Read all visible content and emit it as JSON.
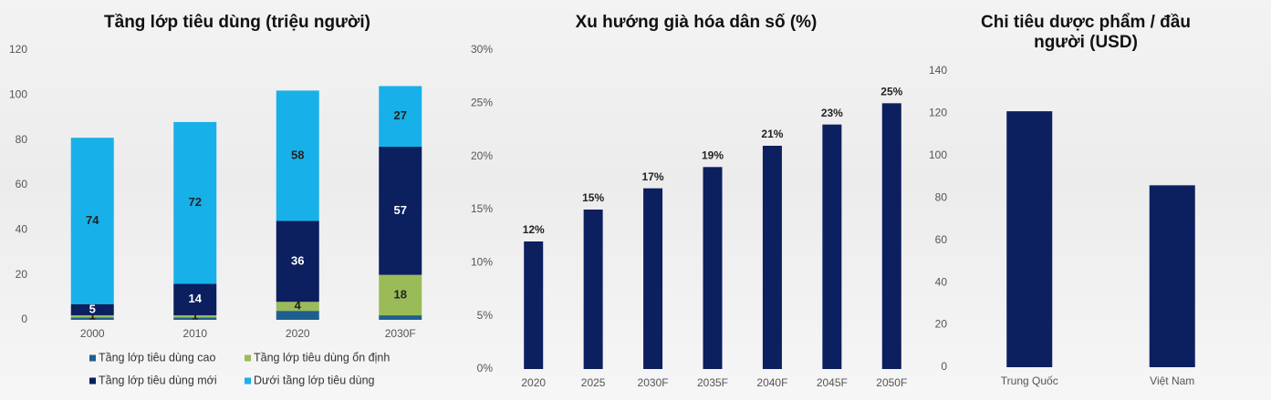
{
  "chart_data": [
    {
      "type": "stacked_bar",
      "title": "Tầng lớp tiêu dùng (triệu người)",
      "categories": [
        "2000",
        "2010",
        "2020",
        "2030F"
      ],
      "series": [
        {
          "name": "Tầng lớp tiêu dùng cao",
          "color": "#1f5f8f",
          "values": [
            1,
            1,
            4,
            2
          ],
          "data_labels": false
        },
        {
          "name": "Tầng lớp tiêu dùng ổn định",
          "color": "#9bbb59",
          "values": [
            1,
            1,
            4,
            18
          ],
          "data_labels": true
        },
        {
          "name": "Tầng lớp tiêu dùng mới",
          "color": "#0c1f5e",
          "values": [
            5,
            14,
            36,
            57
          ],
          "data_labels": true
        },
        {
          "name": "Dưới tầng lớp tiêu dùng",
          "color": "#18b0e8",
          "values": [
            74,
            72,
            58,
            27
          ],
          "data_labels": true
        }
      ],
      "ylim": [
        0,
        120
      ],
      "yticks": [
        0,
        20,
        40,
        60,
        80,
        100,
        120
      ],
      "legend": "bottom"
    },
    {
      "type": "bar",
      "title": "Xu hướng già hóa dân số (%)",
      "categories": [
        "2020",
        "2025",
        "2030F",
        "2035F",
        "2040F",
        "2045F",
        "2050F"
      ],
      "values": [
        12,
        15,
        17,
        19,
        21,
        23,
        25
      ],
      "value_labels": [
        "12%",
        "15%",
        "17%",
        "19%",
        "21%",
        "23%",
        "25%"
      ],
      "color": "#0c1f5e",
      "ylim": [
        0,
        30
      ],
      "yticks": [
        {
          "value": 0,
          "label": "0%"
        },
        {
          "value": 5,
          "label": "5%"
        },
        {
          "value": 10,
          "label": "10%"
        },
        {
          "value": 15,
          "label": "15%"
        },
        {
          "value": 20,
          "label": "20%"
        },
        {
          "value": 25,
          "label": "25%"
        },
        {
          "value": 30,
          "label": "30%"
        }
      ]
    },
    {
      "type": "bar",
      "title": "Chi tiêu dược phẩm / đầu người (USD)",
      "categories": [
        "Trung Quốc",
        "Việt Nam"
      ],
      "values": [
        121,
        86
      ],
      "color": "#0c1f5e",
      "ylim": [
        0,
        140
      ],
      "yticks": [
        0,
        20,
        40,
        60,
        80,
        100,
        120,
        140
      ]
    }
  ]
}
